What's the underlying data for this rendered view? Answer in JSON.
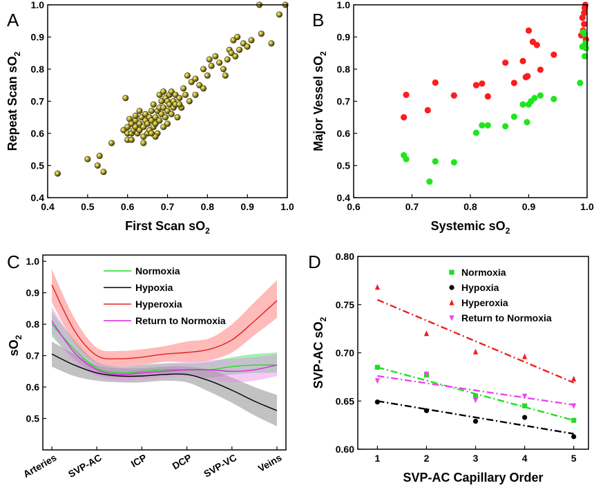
{
  "panels": [
    {
      "id": "A",
      "letter": "A",
      "type": "scatter",
      "xlabel": "First Scan sO",
      "ylabel": "Repeat Scan sO",
      "sub": "2",
      "xlim": [
        0.4,
        1.0
      ],
      "ylim": [
        0.4,
        1.0
      ],
      "xticks": [
        0.4,
        0.5,
        0.6,
        0.7,
        0.8,
        0.9,
        1.0
      ],
      "yticks": [
        0.4,
        0.5,
        0.6,
        0.7,
        0.8,
        0.9,
        1.0
      ],
      "colors": {
        "marker": "#8a8018"
      },
      "points": [
        [
          0.425,
          0.475
        ],
        [
          0.5,
          0.52
        ],
        [
          0.525,
          0.5
        ],
        [
          0.53,
          0.53
        ],
        [
          0.54,
          0.48
        ],
        [
          0.56,
          0.57
        ],
        [
          0.595,
          0.71
        ],
        [
          0.59,
          0.61
        ],
        [
          0.6,
          0.6
        ],
        [
          0.6,
          0.62
        ],
        [
          0.605,
          0.645
        ],
        [
          0.61,
          0.6
        ],
        [
          0.61,
          0.63
        ],
        [
          0.615,
          0.61
        ],
        [
          0.62,
          0.64
        ],
        [
          0.62,
          0.62
        ],
        [
          0.625,
          0.6
        ],
        [
          0.63,
          0.61
        ],
        [
          0.63,
          0.63
        ],
        [
          0.635,
          0.65
        ],
        [
          0.64,
          0.59
        ],
        [
          0.64,
          0.62
        ],
        [
          0.645,
          0.64
        ],
        [
          0.645,
          0.66
        ],
        [
          0.65,
          0.6
        ],
        [
          0.65,
          0.63
        ],
        [
          0.655,
          0.65
        ],
        [
          0.655,
          0.61
        ],
        [
          0.66,
          0.67
        ],
        [
          0.66,
          0.64
        ],
        [
          0.665,
          0.62
        ],
        [
          0.665,
          0.69
        ],
        [
          0.67,
          0.65
        ],
        [
          0.67,
          0.63
        ],
        [
          0.675,
          0.67
        ],
        [
          0.675,
          0.6
        ],
        [
          0.68,
          0.68
        ],
        [
          0.68,
          0.64
        ],
        [
          0.685,
          0.7
        ],
        [
          0.685,
          0.66
        ],
        [
          0.69,
          0.62
        ],
        [
          0.69,
          0.68
        ],
        [
          0.695,
          0.71
        ],
        [
          0.695,
          0.65
        ],
        [
          0.7,
          0.7
        ],
        [
          0.7,
          0.67
        ],
        [
          0.705,
          0.72
        ],
        [
          0.705,
          0.69
        ],
        [
          0.71,
          0.66
        ],
        [
          0.71,
          0.73
        ],
        [
          0.715,
          0.7
        ],
        [
          0.715,
          0.68
        ],
        [
          0.72,
          0.72
        ],
        [
          0.72,
          0.69
        ],
        [
          0.725,
          0.65
        ],
        [
          0.73,
          0.71
        ],
        [
          0.735,
          0.68
        ],
        [
          0.74,
          0.74
        ],
        [
          0.745,
          0.72
        ],
        [
          0.75,
          0.78
        ],
        [
          0.755,
          0.7
        ],
        [
          0.76,
          0.76
        ],
        [
          0.77,
          0.77
        ],
        [
          0.77,
          0.72
        ],
        [
          0.78,
          0.75
        ],
        [
          0.79,
          0.8
        ],
        [
          0.79,
          0.74
        ],
        [
          0.8,
          0.78
        ],
        [
          0.805,
          0.83
        ],
        [
          0.81,
          0.81
        ],
        [
          0.82,
          0.84
        ],
        [
          0.83,
          0.82
        ],
        [
          0.84,
          0.8
        ],
        [
          0.845,
          0.78
        ],
        [
          0.85,
          0.83
        ],
        [
          0.855,
          0.86
        ],
        [
          0.86,
          0.85
        ],
        [
          0.865,
          0.89
        ],
        [
          0.87,
          0.84
        ],
        [
          0.875,
          0.9
        ],
        [
          0.88,
          0.86
        ],
        [
          0.89,
          0.88
        ],
        [
          0.9,
          0.87
        ],
        [
          0.91,
          0.89
        ],
        [
          0.93,
          1.0
        ],
        [
          0.935,
          0.91
        ],
        [
          0.96,
          0.88
        ],
        [
          0.98,
          0.97
        ],
        [
          0.995,
          1.0
        ],
        [
          0.6,
          0.58
        ],
        [
          0.67,
          0.59
        ],
        [
          0.64,
          0.57
        ],
        [
          0.7,
          0.63
        ],
        [
          0.73,
          0.69
        ],
        [
          0.62,
          0.655
        ],
        [
          0.66,
          0.6
        ],
        [
          0.68,
          0.72
        ],
        [
          0.63,
          0.67
        ],
        [
          0.69,
          0.73
        ],
        [
          0.61,
          0.58
        ]
      ]
    },
    {
      "id": "B",
      "letter": "B",
      "type": "scatter",
      "xlabel": "Systemic sO",
      "ylabel": "Major Vessel sO",
      "sub": "2",
      "xlim": [
        0.6,
        1.0
      ],
      "ylim": [
        0.4,
        1.0
      ],
      "xticks": [
        0.6,
        0.7,
        0.8,
        0.9,
        1.0
      ],
      "yticks": [
        0.4,
        0.5,
        0.6,
        0.7,
        0.8,
        0.9,
        1.0
      ],
      "series": [
        {
          "color": "#ff1c1c",
          "points": [
            [
              0.686,
              0.65
            ],
            [
              0.69,
              0.72
            ],
            [
              0.727,
              0.672
            ],
            [
              0.74,
              0.758
            ],
            [
              0.772,
              0.718
            ],
            [
              0.81,
              0.75
            ],
            [
              0.82,
              0.755
            ],
            [
              0.83,
              0.715
            ],
            [
              0.86,
              0.82
            ],
            [
              0.875,
              0.757
            ],
            [
              0.89,
              0.825
            ],
            [
              0.895,
              0.775
            ],
            [
              0.898,
              0.778
            ],
            [
              0.9,
              0.92
            ],
            [
              0.907,
              0.885
            ],
            [
              0.914,
              0.875
            ],
            [
              0.92,
              0.798
            ],
            [
              0.943,
              0.845
            ],
            [
              0.99,
              0.905
            ],
            [
              0.992,
              0.96
            ],
            [
              0.995,
              0.975
            ],
            [
              0.996,
              0.99
            ],
            [
              0.997,
              1.0
            ],
            [
              0.995,
              0.94
            ],
            [
              0.998,
              0.892
            ],
            [
              0.993,
              0.92
            ]
          ]
        },
        {
          "color": "#1ee61e",
          "points": [
            [
              0.686,
              0.532
            ],
            [
              0.69,
              0.52
            ],
            [
              0.73,
              0.45
            ],
            [
              0.74,
              0.513
            ],
            [
              0.772,
              0.51
            ],
            [
              0.81,
              0.602
            ],
            [
              0.82,
              0.625
            ],
            [
              0.83,
              0.625
            ],
            [
              0.86,
              0.622
            ],
            [
              0.875,
              0.652
            ],
            [
              0.89,
              0.69
            ],
            [
              0.897,
              0.635
            ],
            [
              0.9,
              0.69
            ],
            [
              0.904,
              0.7
            ],
            [
              0.91,
              0.71
            ],
            [
              0.92,
              0.718
            ],
            [
              0.943,
              0.707
            ],
            [
              0.988,
              0.757
            ],
            [
              0.992,
              0.87
            ],
            [
              0.995,
              0.91
            ],
            [
              0.997,
              0.88
            ],
            [
              0.996,
              0.84
            ],
            [
              0.998,
              0.865
            ],
            [
              0.993,
              0.915
            ]
          ]
        }
      ]
    },
    {
      "id": "C",
      "letter": "C",
      "type": "line",
      "ylabel": "sO",
      "sub": "2",
      "categories": [
        "Arteries",
        "SVP-AC",
        "ICP",
        "DCP",
        "SVP-VC",
        "Veins"
      ],
      "ylim": [
        0.4,
        1.02
      ],
      "yticks": [
        0.5,
        0.6,
        0.7,
        0.8,
        0.9,
        1.0
      ],
      "legend_position": "top-center",
      "series": [
        {
          "name": "Normoxia",
          "color": "#22dd22",
          "band_color": "#33dd55",
          "x": [
            0,
            0.5,
            1,
            1.5,
            2,
            2.5,
            3,
            3.5,
            4,
            4.5,
            5
          ],
          "y": [
            0.8,
            0.72,
            0.66,
            0.645,
            0.65,
            0.655,
            0.655,
            0.655,
            0.665,
            0.67,
            0.67
          ],
          "lo": [
            0.76,
            0.69,
            0.64,
            0.63,
            0.635,
            0.64,
            0.64,
            0.63,
            0.64,
            0.645,
            0.645
          ],
          "hi": [
            0.84,
            0.75,
            0.68,
            0.665,
            0.67,
            0.675,
            0.675,
            0.68,
            0.695,
            0.705,
            0.71
          ]
        },
        {
          "name": "Hypoxia",
          "color": "#000000",
          "band_color": "#777777",
          "x": [
            0,
            0.5,
            1,
            1.5,
            2,
            2.5,
            3,
            3.5,
            4,
            4.5,
            5
          ],
          "y": [
            0.705,
            0.67,
            0.645,
            0.635,
            0.635,
            0.64,
            0.64,
            0.62,
            0.59,
            0.555,
            0.525
          ],
          "lo": [
            0.665,
            0.635,
            0.62,
            0.615,
            0.615,
            0.62,
            0.615,
            0.585,
            0.55,
            0.51,
            0.475
          ],
          "hi": [
            0.745,
            0.705,
            0.67,
            0.66,
            0.66,
            0.665,
            0.665,
            0.655,
            0.63,
            0.6,
            0.575
          ]
        },
        {
          "name": "Hyperoxia",
          "color": "#e02020",
          "band_color": "#ff6666",
          "x": [
            0,
            0.5,
            1,
            1.5,
            2,
            2.5,
            3,
            3.5,
            4,
            4.5,
            5
          ],
          "y": [
            0.925,
            0.78,
            0.7,
            0.69,
            0.695,
            0.705,
            0.71,
            0.72,
            0.75,
            0.81,
            0.875
          ],
          "lo": [
            0.87,
            0.74,
            0.675,
            0.665,
            0.67,
            0.68,
            0.68,
            0.685,
            0.71,
            0.765,
            0.82
          ],
          "hi": [
            0.975,
            0.82,
            0.725,
            0.715,
            0.72,
            0.73,
            0.745,
            0.755,
            0.8,
            0.87,
            0.94
          ]
        },
        {
          "name": "Return to Normoxia",
          "color": "#dd22dd",
          "band_color": "#ee88ee",
          "x": [
            0,
            0.5,
            1,
            1.5,
            2,
            2.5,
            3,
            3.5,
            4,
            4.5,
            5
          ],
          "y": [
            0.81,
            0.71,
            0.655,
            0.64,
            0.645,
            0.65,
            0.655,
            0.655,
            0.65,
            0.655,
            0.67
          ],
          "lo": [
            0.77,
            0.68,
            0.635,
            0.62,
            0.625,
            0.63,
            0.635,
            0.625,
            0.615,
            0.62,
            0.635
          ],
          "hi": [
            0.855,
            0.745,
            0.68,
            0.665,
            0.67,
            0.675,
            0.68,
            0.685,
            0.69,
            0.695,
            0.705
          ]
        }
      ]
    },
    {
      "id": "D",
      "letter": "D",
      "type": "scatter",
      "xlabel": "SVP-AC Capillary Order",
      "ylabel": "SVP-AC sO",
      "sub": "2",
      "xlim": [
        0.6,
        5.3
      ],
      "ylim": [
        0.6,
        0.8
      ],
      "xticks": [
        1,
        2,
        3,
        4,
        5
      ],
      "yticks": [
        0.6,
        0.65,
        0.7,
        0.75,
        0.8
      ],
      "ytick_labels": [
        "0.60",
        "0.65",
        "0.70",
        "0.75",
        "0.80"
      ],
      "legend_position": "top-right",
      "series": [
        {
          "name": "Normoxia",
          "color": "#22dd22",
          "marker": "square",
          "x": [
            1,
            2,
            3,
            4,
            5
          ],
          "y": [
            0.685,
            0.677,
            0.655,
            0.645,
            0.63
          ],
          "fit": [
            0.685,
            0.63
          ]
        },
        {
          "name": "Hypoxia",
          "color": "#000000",
          "marker": "circle",
          "x": [
            1,
            2,
            3,
            4,
            5
          ],
          "y": [
            0.649,
            0.64,
            0.629,
            0.633,
            0.613
          ],
          "fit": [
            0.65,
            0.616
          ]
        },
        {
          "name": "Hyperoxia",
          "color": "#ee2020",
          "marker": "triangle-up",
          "x": [
            1,
            2,
            3,
            4,
            5
          ],
          "y": [
            0.768,
            0.72,
            0.701,
            0.696,
            0.673
          ],
          "fit": [
            0.755,
            0.669
          ]
        },
        {
          "name": "Return to Normoxia",
          "color": "#ee44ee",
          "marker": "triangle-down",
          "x": [
            1,
            2,
            3,
            4,
            5
          ],
          "y": [
            0.671,
            0.678,
            0.651,
            0.655,
            0.645
          ],
          "fit": [
            0.676,
            0.646
          ]
        }
      ]
    }
  ]
}
